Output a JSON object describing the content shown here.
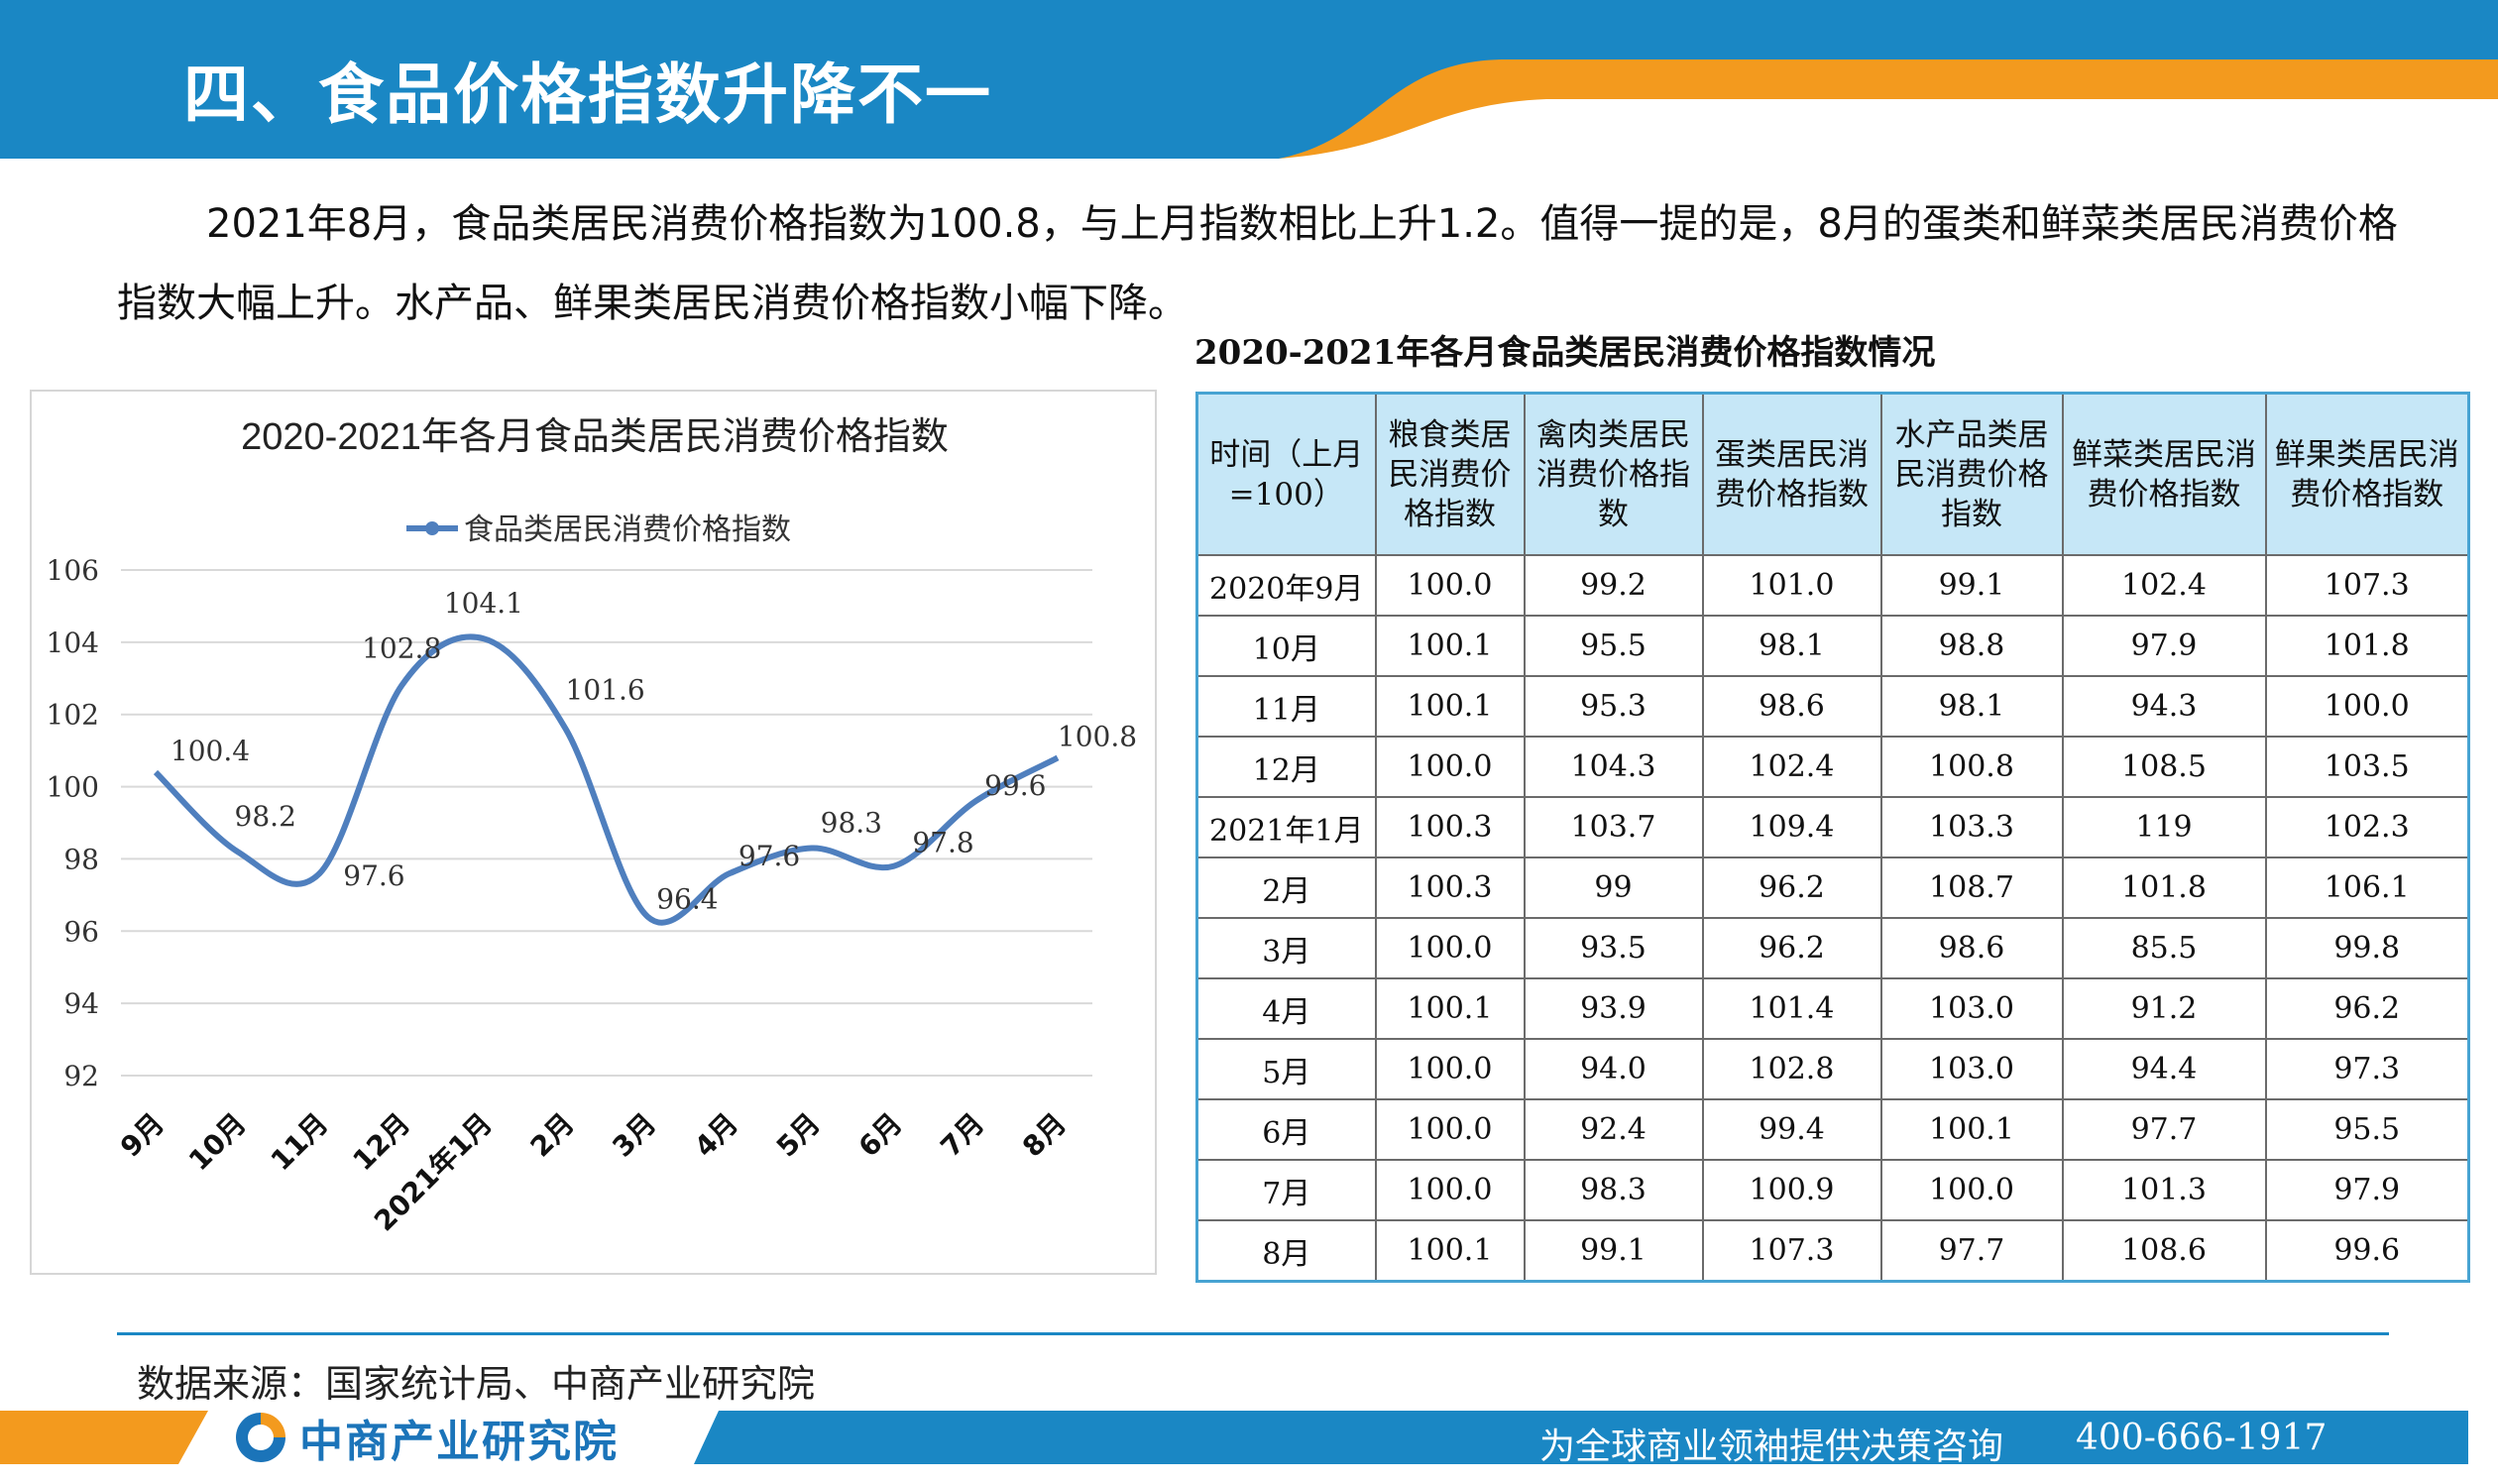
{
  "header": {
    "title": "四、食品价格指数升降不一"
  },
  "intro": {
    "paragraph": "2021年8月，食品类居民消费价格指数为100.8，与上月指数相比上升1.2。值得一提的是，8月的蛋类和鲜菜类居民消费价格指数大幅上升。水产品、鲜果类居民消费价格指数小幅下降。"
  },
  "table": {
    "caption": "2020-2021年各月食品类居民消费价格指数情况",
    "headers": [
      "时间（上月=100）",
      "粮食类居民消费价格指数",
      "禽肉类居民消费价格指数",
      "蛋类居民消费价格指数",
      "水产品类居民消费价格指数",
      "鲜菜类居民消费价格指数",
      "鲜果类居民消费价格指数"
    ],
    "rows": [
      [
        "2020年9月",
        "100.0",
        "99.2",
        "101.0",
        "99.1",
        "102.4",
        "107.3"
      ],
      [
        "10月",
        "100.1",
        "95.5",
        "98.1",
        "98.8",
        "97.9",
        "101.8"
      ],
      [
        "11月",
        "100.1",
        "95.3",
        "98.6",
        "98.1",
        "94.3",
        "100.0"
      ],
      [
        "12月",
        "100.0",
        "104.3",
        "102.4",
        "100.8",
        "108.5",
        "103.5"
      ],
      [
        "2021年1月",
        "100.3",
        "103.7",
        "109.4",
        "103.3",
        "119",
        "102.3"
      ],
      [
        "2月",
        "100.3",
        "99",
        "96.2",
        "108.7",
        "101.8",
        "106.1"
      ],
      [
        "3月",
        "100.0",
        "93.5",
        "96.2",
        "98.6",
        "85.5",
        "99.8"
      ],
      [
        "4月",
        "100.1",
        "93.9",
        "101.4",
        "103.0",
        "91.2",
        "96.2"
      ],
      [
        "5月",
        "100.0",
        "94.0",
        "102.8",
        "103.0",
        "94.4",
        "97.3"
      ],
      [
        "6月",
        "100.0",
        "92.4",
        "99.4",
        "100.1",
        "97.7",
        "95.5"
      ],
      [
        "7月",
        "100.0",
        "98.3",
        "100.9",
        "100.0",
        "101.3",
        "97.9"
      ],
      [
        "8月",
        "100.1",
        "99.1",
        "107.3",
        "97.7",
        "108.6",
        "99.6"
      ]
    ]
  },
  "chart_data": {
    "type": "line",
    "title": "2020-2021年各月食品类居民消费价格指数",
    "categories": [
      "9月",
      "10月",
      "11月",
      "12月",
      "2021年1月",
      "2月",
      "3月",
      "4月",
      "5月",
      "6月",
      "7月",
      "8月"
    ],
    "series": [
      {
        "name": "食品类居民消费价格指数",
        "values": [
          100.4,
          98.2,
          97.6,
          102.8,
          104.1,
          101.6,
          96.4,
          97.6,
          98.3,
          97.8,
          99.6,
          100.8
        ],
        "labels": [
          "100.4",
          "98.2",
          "97.6",
          "102.8",
          "104.1",
          "101.6",
          "96.4",
          "97.6",
          "98.3",
          "97.8",
          "99.6",
          "100.8"
        ],
        "color": "#4f7fbe"
      }
    ],
    "ylim": [
      92,
      106
    ],
    "yticks": [
      "92",
      "94",
      "96",
      "98",
      "100",
      "102",
      "104",
      "106"
    ],
    "grid": true,
    "legend": "top"
  },
  "footer": {
    "source": "数据来源：国家统计局、中商产业研究院",
    "logo_text": "中商产业研究院",
    "slogan": "为全球商业领袖提供决策咨询",
    "hotline": "400-666-1917"
  },
  "colors": {
    "brand_blue": "#1a87c4",
    "accent_orange": "#f39a1e",
    "line_blue": "#4f7fbe",
    "header_cell": "#c6e7f7"
  },
  "icons": {
    "logo": "cci-logo-icon"
  }
}
